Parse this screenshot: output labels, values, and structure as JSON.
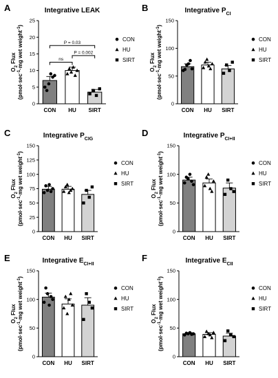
{
  "colors": {
    "CON": "#808080",
    "HU": "#ffffff",
    "SIRT": "#d3d3d3"
  },
  "legend": [
    {
      "label": "CON",
      "marker": "circle"
    },
    {
      "label": "HU",
      "marker": "triangle"
    },
    {
      "label": "SIRT",
      "marker": "square"
    }
  ],
  "y_axis_label": {
    "main": "O",
    "sub": "2",
    "main2": " Flux",
    "line2": "(pmol·sec",
    "exp1": "-1",
    "mid": "·mg wet weight",
    "exp2": "-1",
    "close": ")"
  },
  "chart_data": [
    {
      "letter": "A",
      "type": "bar",
      "title": {
        "main": "Integrative LEAK",
        "sub": ""
      },
      "categories": [
        "CON",
        "HU",
        "SIRT"
      ],
      "values": [
        7.0,
        10.0,
        3.5
      ],
      "sem": [
        1.2,
        1.0,
        0.8
      ],
      "points": [
        [
          5,
          4,
          6,
          9,
          8,
          8.5
        ],
        [
          9,
          10.5,
          9.5,
          11,
          8.5,
          10
        ],
        [
          3,
          4,
          2.5,
          4.5
        ]
      ],
      "ylim": [
        0,
        25
      ],
      "yticks": [
        0,
        5,
        10,
        15,
        20,
        25
      ],
      "annotations": [
        {
          "from": 0,
          "to": 1,
          "y": 12.5,
          "label": "ns"
        },
        {
          "from": 1,
          "to": 2,
          "y": 14.5,
          "label": "P = 0.002"
        },
        {
          "from": 0,
          "to": 2,
          "y": 17.5,
          "label": "P = 0.03"
        }
      ]
    },
    {
      "letter": "B",
      "type": "bar",
      "title": {
        "main": "Integrative P",
        "sub": "CI"
      },
      "categories": [
        "CON",
        "HU",
        "SIRT"
      ],
      "values": [
        67,
        70,
        63
      ],
      "sem": [
        5,
        5,
        6
      ],
      "points": [
        [
          60,
          62,
          70,
          72,
          78,
          63
        ],
        [
          65,
          75,
          80,
          68,
          63,
          72
        ],
        [
          55,
          70,
          60,
          75
        ]
      ],
      "ylim": [
        0,
        150
      ],
      "yticks": [
        0,
        50,
        100,
        150
      ],
      "annotations": []
    },
    {
      "letter": "C",
      "type": "bar",
      "title": {
        "main": "Integrative P",
        "sub": "CIG"
      },
      "categories": [
        "CON",
        "HU",
        "SIRT"
      ],
      "values": [
        74,
        74,
        65
      ],
      "sem": [
        5,
        5,
        7
      ],
      "points": [
        [
          68,
          80,
          72,
          82,
          70,
          75
        ],
        [
          70,
          78,
          82,
          68,
          72,
          75
        ],
        [
          50,
          72,
          60,
          78
        ]
      ],
      "ylim": [
        0,
        150
      ],
      "yticks": [
        0,
        25,
        50,
        75,
        100,
        125,
        150
      ],
      "annotations": []
    },
    {
      "letter": "D",
      "type": "bar",
      "title": {
        "main": "Integrative P",
        "sub": "CI+II"
      },
      "categories": [
        "CON",
        "HU",
        "SIRT"
      ],
      "values": [
        90,
        85,
        76
      ],
      "sem": [
        5,
        7,
        9
      ],
      "points": [
        [
          85,
          95,
          92,
          100,
          88,
          82
        ],
        [
          80,
          95,
          100,
          75,
          70,
          88
        ],
        [
          65,
          90,
          75,
          70
        ]
      ],
      "ylim": [
        0,
        150
      ],
      "yticks": [
        0,
        50,
        100,
        150
      ],
      "annotations": []
    },
    {
      "letter": "E",
      "type": "bar",
      "title": {
        "main": "Integrative E",
        "sub": "CI+II"
      },
      "categories": [
        "CON",
        "HU",
        "SIRT"
      ],
      "values": [
        104,
        92,
        90
      ],
      "sem": [
        7,
        9,
        13
      ],
      "points": [
        [
          95,
          120,
          110,
          90,
          105,
          100
        ],
        [
          85,
          105,
          75,
          100,
          110,
          90
        ],
        [
          65,
          110,
          95,
          85
        ]
      ],
      "ylim": [
        0,
        150
      ],
      "yticks": [
        0,
        50,
        100,
        150
      ],
      "annotations": []
    },
    {
      "letter": "F",
      "type": "bar",
      "title": {
        "main": "Integrative E",
        "sub": "CII"
      },
      "categories": [
        "CON",
        "HU",
        "SIRT"
      ],
      "values": [
        40,
        39,
        36
      ],
      "sem": [
        2,
        3,
        5
      ],
      "points": [
        [
          38,
          41,
          40,
          42,
          39,
          40
        ],
        [
          35,
          44,
          40,
          38,
          33,
          42
        ],
        [
          28,
          45,
          38,
          35
        ]
      ],
      "ylim": [
        0,
        150
      ],
      "yticks": [
        0,
        50,
        100,
        150
      ],
      "annotations": []
    }
  ]
}
